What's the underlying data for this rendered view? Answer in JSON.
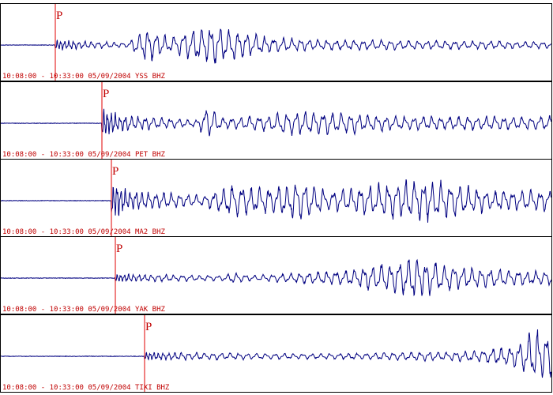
{
  "panels": [
    {
      "label": "10:08:00 - 10:33:00 05/09/2004 YSS BHZ",
      "phase": "P"
    },
    {
      "label": "10:08:00 - 10:33:00 05/09/2004 PET BHZ",
      "phase": "P"
    },
    {
      "label": "10:08:00 - 10:33:00 05/09/2004 MA2 BHZ",
      "phase": "P"
    },
    {
      "label": "10:08:00 - 10:33:00 05/09/2004 YAK BHZ",
      "phase": "P"
    },
    {
      "label": "10:08:00 - 10:33:00 05/09/2004 TIXI BHZ",
      "phase": "P"
    }
  ]
}
